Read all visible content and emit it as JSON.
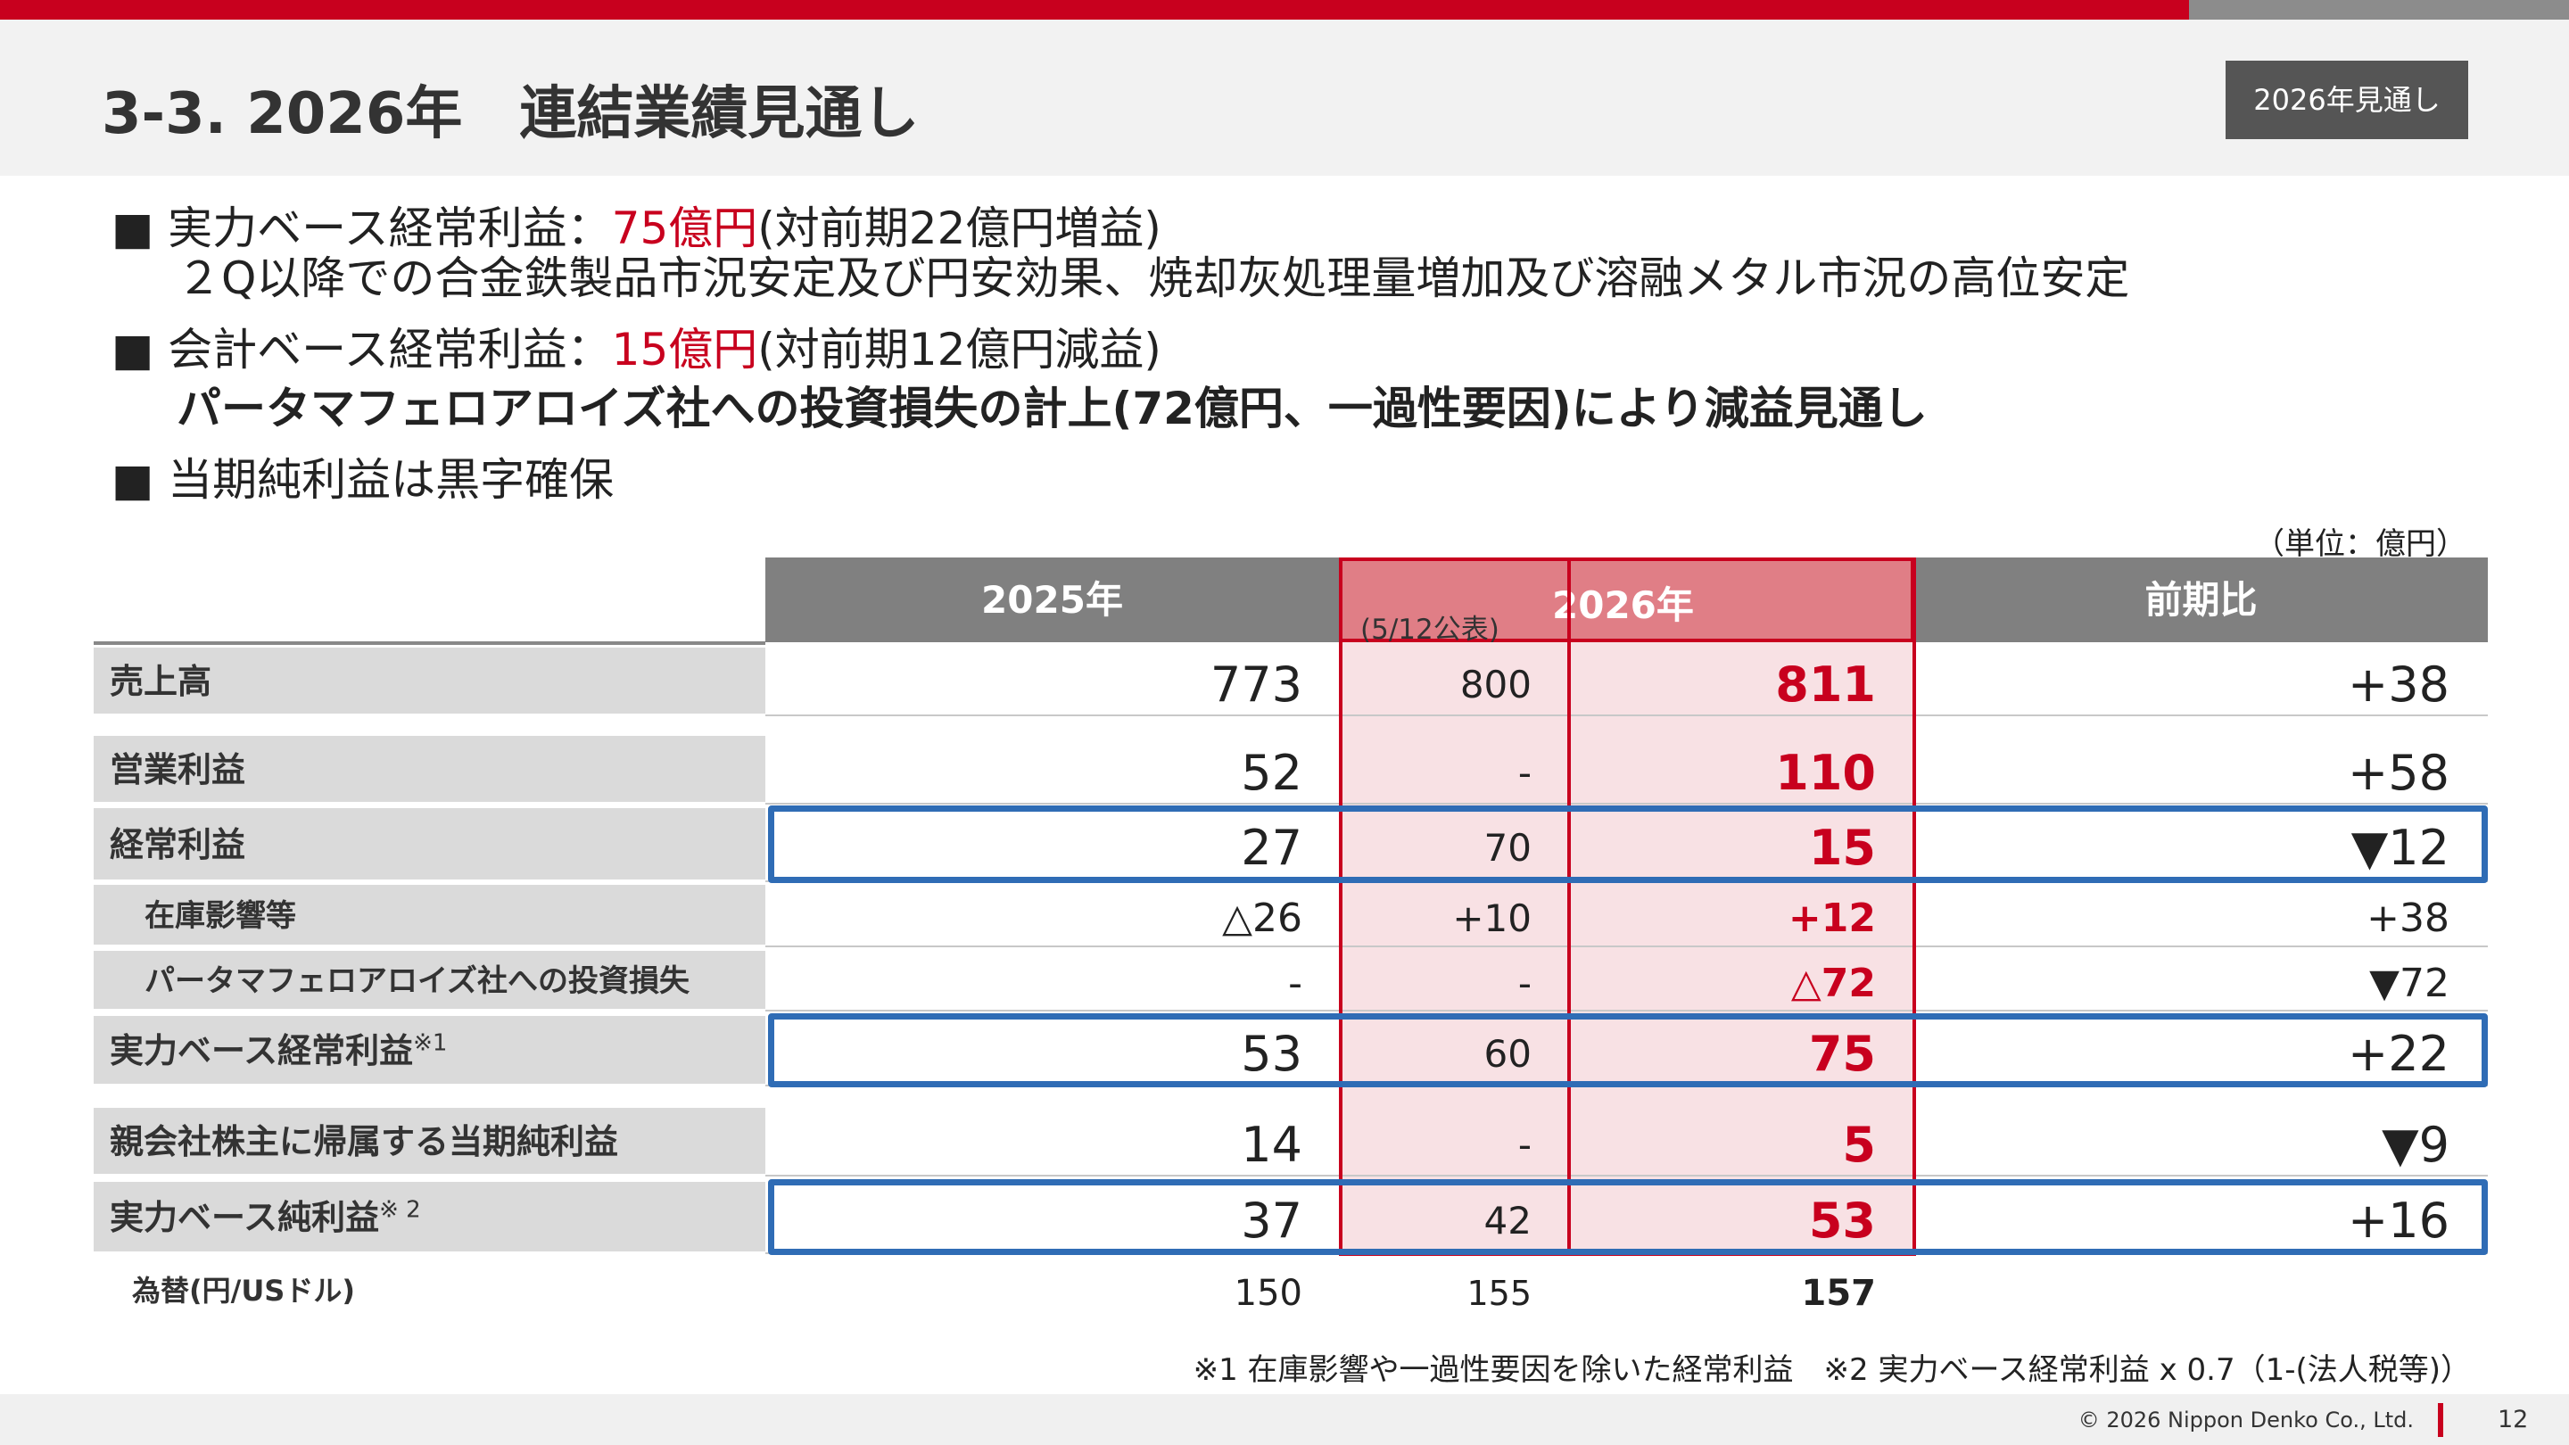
{
  "header": {
    "title": "3-3. 2026年　連結業績見通し",
    "badge": "2026年見通し"
  },
  "bullets": [
    {
      "parts": [
        "実力ベース経常利益：",
        "75億円",
        "(対前期22億円増益)"
      ],
      "detail": "２Q以降での合金鉄製品市況安定及び円安効果、焼却灰処理量増加及び溶融メタル市況の高位安定"
    },
    {
      "parts": [
        "会計ベース経常利益：",
        "15億円",
        "(対前期12億円減益)"
      ],
      "detail": "パータマフェロアロイズ社への投資損失の計上(72億円、一過性要因)により減益見通し"
    },
    {
      "parts": [
        "当期純利益は黒字確保"
      ]
    }
  ],
  "table": {
    "unit": "（単位：億円）",
    "headers": [
      "2025年",
      "2026年",
      "前期比"
    ],
    "announced_label": "(5/12公表)",
    "rows": [
      {
        "label": "売上高",
        "cells": [
          "773",
          "800",
          "811",
          "+38"
        ]
      },
      {
        "label": "営業利益",
        "cells": [
          "52",
          "-",
          "110",
          "+58"
        ]
      },
      {
        "label": "経常利益",
        "cells": [
          "27",
          "70",
          "15",
          "▼12"
        ]
      },
      {
        "label": "在庫影響等",
        "cells": [
          "△26",
          "+10",
          "+12",
          "+38"
        ]
      },
      {
        "label": "パータマフェロアロイズ社への投資損失",
        "cells": [
          "-",
          "-",
          "△72",
          "▼72"
        ]
      },
      {
        "label": "実力ベース経常利益",
        "note": "※1",
        "cells": [
          "53",
          "60",
          "75",
          "+22"
        ]
      },
      {
        "label": "親会社株主に帰属する当期純利益",
        "cells": [
          "14",
          "-",
          "5",
          "▼9"
        ]
      },
      {
        "label": "実力ベース純利益",
        "note": "※ 2",
        "cells": [
          "37",
          "42",
          "53",
          "+16"
        ]
      },
      {
        "label": "為替(円/USドル)",
        "cells": [
          "150",
          "155",
          "157"
        ]
      }
    ],
    "footnote": "※1  在庫影響や一過性要因を除いた経常利益　※2  実力ベース経常利益 x 0.7（1-(法人税等)）"
  },
  "footer": {
    "copyright": "© 2026 Nippon Denko Co., Ltd.",
    "page": "12"
  }
}
